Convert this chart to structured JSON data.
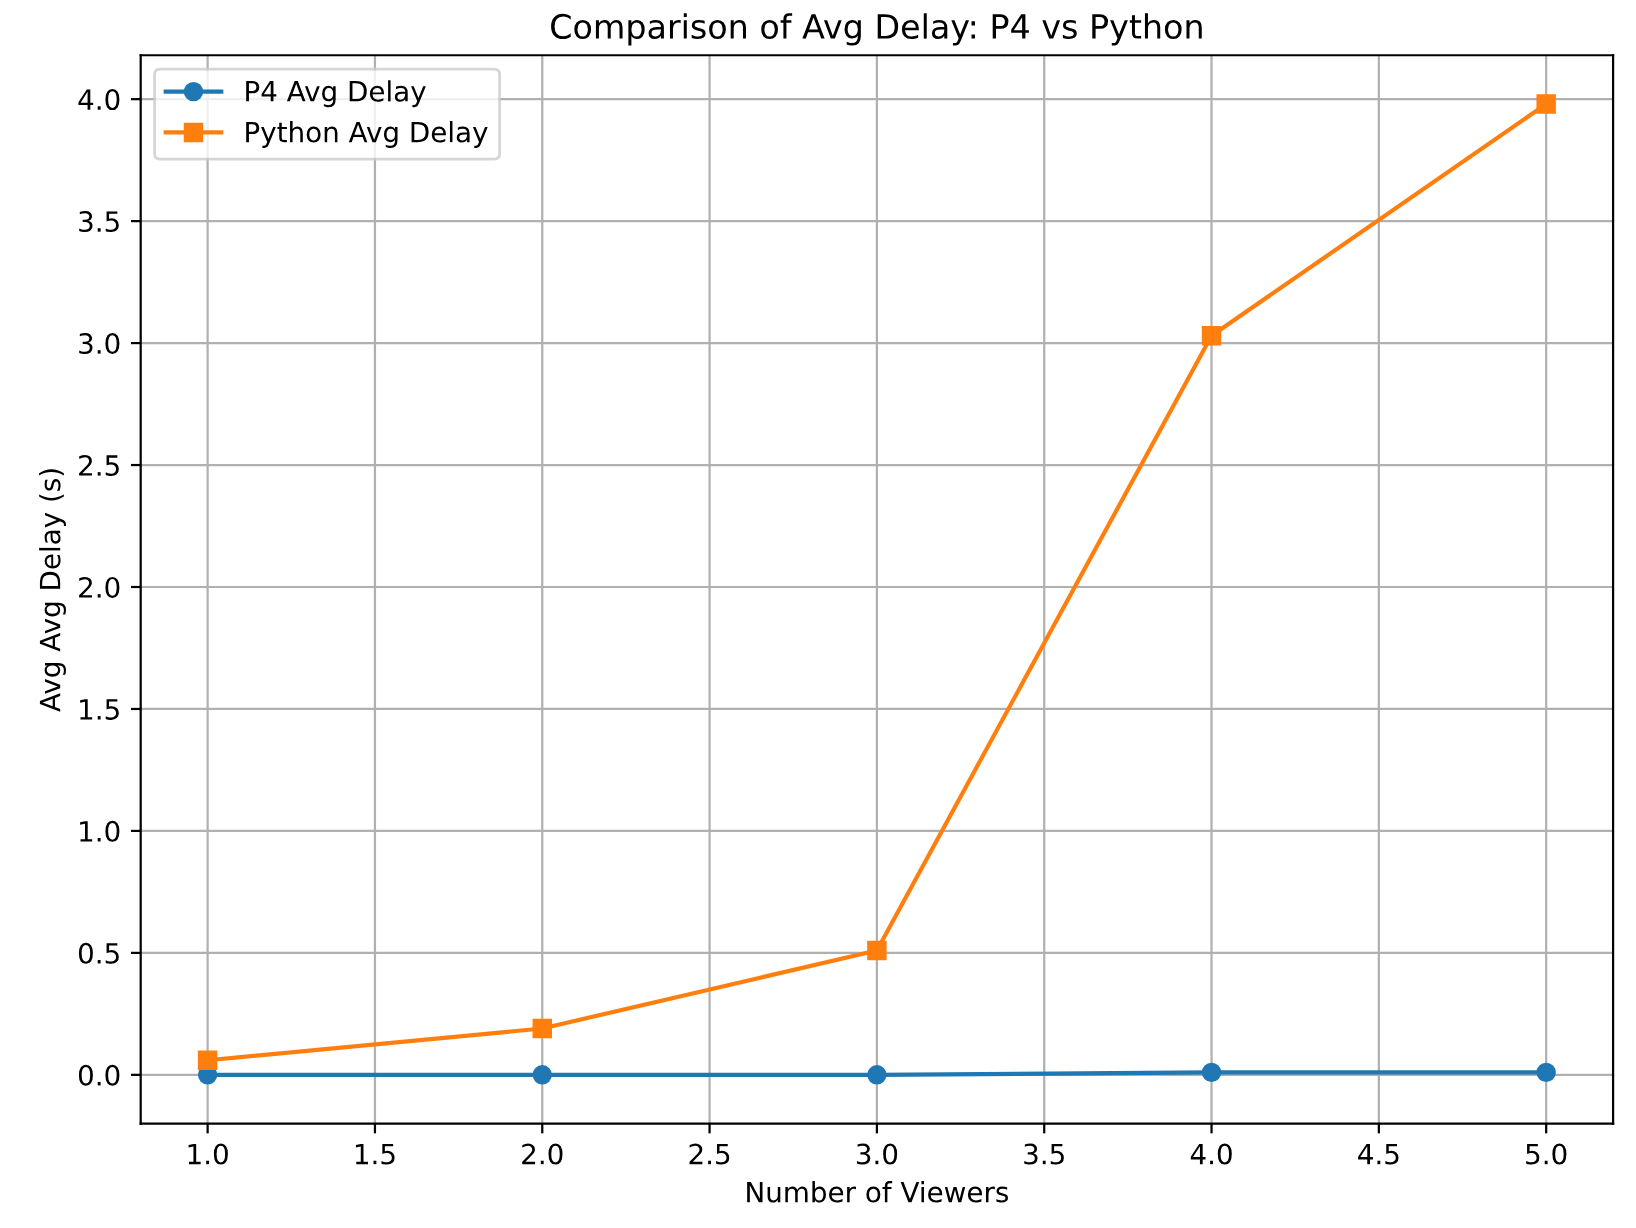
{
  "chart_data": {
    "type": "line",
    "title": "Comparison of Avg Delay: P4 vs Python",
    "xlabel": "Number of Viewers",
    "ylabel": "Avg Avg Delay (s)",
    "x": [
      1,
      2,
      3,
      4,
      5
    ],
    "series": [
      {
        "name": "P4 Avg Delay",
        "color": "#1f77b4",
        "marker": "circle",
        "values": [
          0,
          0,
          0,
          0.01,
          0.01
        ]
      },
      {
        "name": "Python Avg Delay",
        "color": "#ff7f0e",
        "marker": "square",
        "values": [
          0.06,
          0.19,
          0.51,
          3.03,
          3.98
        ]
      }
    ],
    "xlim": [
      0.8,
      5.2
    ],
    "ylim": [
      -0.2,
      4.18
    ],
    "xticks": [
      {
        "value": 1,
        "label": "1.0"
      },
      {
        "value": 1.5,
        "label": "1.5"
      },
      {
        "value": 2,
        "label": "2.0"
      },
      {
        "value": 2.5,
        "label": "2.5"
      },
      {
        "value": 3,
        "label": "3.0"
      },
      {
        "value": 3.5,
        "label": "3.5"
      },
      {
        "value": 4,
        "label": "4.0"
      },
      {
        "value": 4.5,
        "label": "4.5"
      },
      {
        "value": 5,
        "label": "5.0"
      }
    ],
    "yticks": [
      {
        "value": 0,
        "label": "0.0"
      },
      {
        "value": 0.5,
        "label": "0.5"
      },
      {
        "value": 1,
        "label": "1.0"
      },
      {
        "value": 1.5,
        "label": "1.5"
      },
      {
        "value": 2,
        "label": "2.0"
      },
      {
        "value": 2.5,
        "label": "2.5"
      },
      {
        "value": 3,
        "label": "3.0"
      },
      {
        "value": 3.5,
        "label": "3.5"
      },
      {
        "value": 4,
        "label": "4.0"
      }
    ],
    "grid": true,
    "legend": "top left",
    "line_style": "solid"
  }
}
